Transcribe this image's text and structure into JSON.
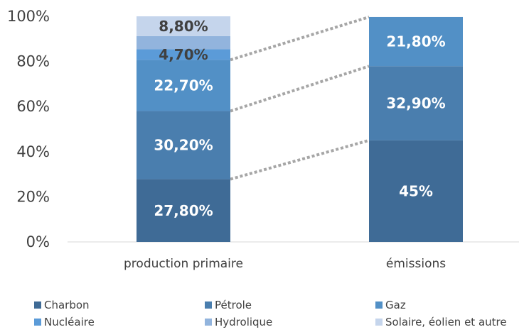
{
  "chart_data": {
    "type": "bar",
    "stacked": true,
    "categories": [
      "production primaire",
      "émissions"
    ],
    "series": [
      {
        "name": "Charbon",
        "color": "#3f6b96",
        "values": [
          27.8,
          45.0
        ],
        "labels": [
          "27,80%",
          "45%"
        ]
      },
      {
        "name": "Pétrole",
        "color": "#4a7eae",
        "values": [
          30.2,
          32.9
        ],
        "labels": [
          "30,20%",
          "32,90%"
        ]
      },
      {
        "name": "Gaz",
        "color": "#5290c6",
        "values": [
          22.7,
          21.8
        ],
        "labels": [
          "22,70%",
          "21,80%"
        ]
      },
      {
        "name": "Nucléaire",
        "color": "#5b9bd8",
        "values": [
          4.7,
          0
        ],
        "labels": [
          "4,70%",
          ""
        ]
      },
      {
        "name": "Hydrolique",
        "color": "#92b4dd",
        "values": [
          5.8,
          0
        ],
        "labels": [
          "",
          ""
        ]
      },
      {
        "name": "Solaire, éolien et autre",
        "color": "#c5d5ec",
        "values": [
          8.8,
          0
        ],
        "labels": [
          "8,80%",
          ""
        ]
      }
    ],
    "yticks": [
      "0%",
      "20%",
      "40%",
      "60%",
      "80%",
      "100%"
    ],
    "ylim": [
      0,
      100
    ],
    "grid": false,
    "connectors": true,
    "legend_position": "bottom",
    "title": "",
    "xlabel": "",
    "ylabel": ""
  }
}
